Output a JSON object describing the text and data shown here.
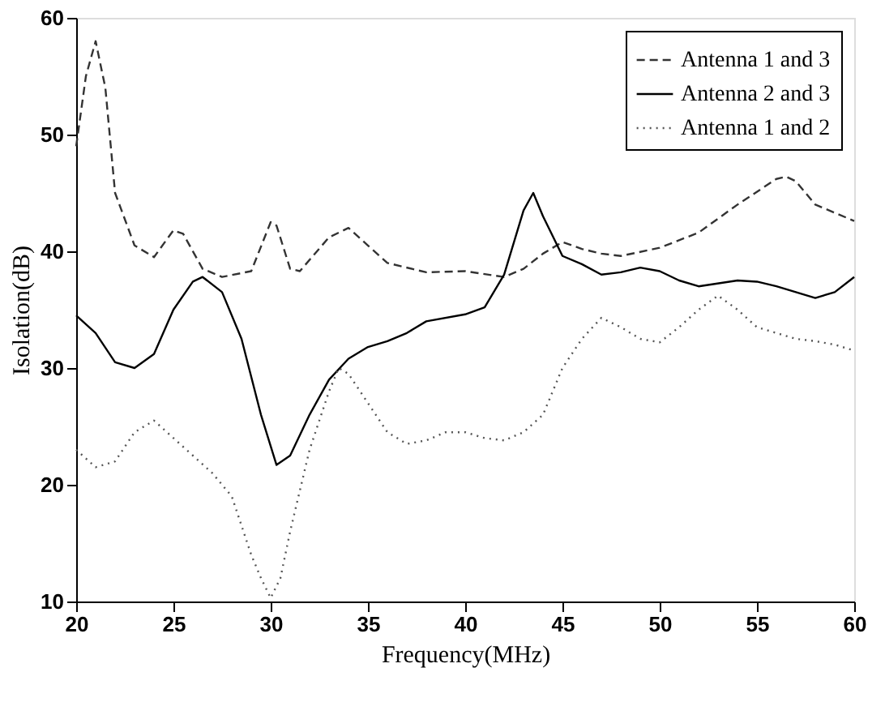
{
  "chart_data": {
    "type": "line",
    "xlabel": "Frequency(MHz)",
    "ylabel": "Isolation(dB)",
    "xlim": [
      20,
      60
    ],
    "xticks": [
      20,
      25,
      30,
      35,
      40,
      45,
      50,
      55,
      60
    ],
    "ylim": [
      10,
      60
    ],
    "yticks": [
      10,
      20,
      30,
      40,
      50,
      60
    ],
    "grid": false,
    "legend": "top right",
    "marker": "none",
    "series": [
      {
        "name": "Antenna 1 and 3",
        "color": "#333333",
        "line_style": "dashed",
        "x": [
          20,
          20.5,
          21,
          21.5,
          22,
          23,
          24,
          25,
          25.5,
          26.5,
          27.5,
          29,
          30,
          30.3,
          31,
          31.5,
          33,
          34,
          35,
          36,
          38,
          40,
          42,
          43,
          44,
          45,
          46,
          47,
          48,
          50,
          52,
          54,
          56,
          56.5,
          57,
          58,
          60
        ],
        "values": [
          49,
          55,
          58,
          54,
          45,
          40.5,
          39.5,
          41.8,
          41.5,
          38.5,
          37.8,
          38.3,
          42.5,
          42.2,
          38.5,
          38.3,
          41.2,
          42,
          40.5,
          39,
          38.2,
          38.3,
          37.8,
          38.5,
          39.8,
          40.8,
          40.2,
          39.8,
          39.6,
          40.3,
          41.6,
          44,
          46.2,
          46.4,
          46,
          44,
          42.6
        ]
      },
      {
        "name": "Antenna 2 and 3",
        "color": "#000000",
        "line_style": "solid",
        "x": [
          20,
          21,
          22,
          23,
          24,
          25,
          26,
          26.5,
          27.5,
          28.5,
          29.5,
          30.3,
          31,
          32,
          33,
          34,
          35,
          36,
          37,
          38,
          40,
          41,
          42,
          43,
          43.5,
          44,
          45,
          46,
          47,
          48,
          49,
          50,
          51,
          52,
          54,
          55,
          56,
          57,
          58,
          59,
          60
        ],
        "values": [
          34.5,
          33,
          30.5,
          30,
          31.2,
          35,
          37.4,
          37.8,
          36.5,
          32.5,
          26,
          21.7,
          22.5,
          26,
          29,
          30.8,
          31.8,
          32.3,
          33,
          34,
          34.6,
          35.2,
          38,
          43.5,
          45,
          43,
          39.6,
          38.9,
          38,
          38.2,
          38.6,
          38.3,
          37.5,
          37,
          37.5,
          37.4,
          37,
          36.5,
          36,
          36.5,
          37.8
        ]
      },
      {
        "name": "Antenna 1 and 2",
        "color": "#555555",
        "line_style": "dotted",
        "x": [
          20,
          21,
          22,
          23,
          24,
          25,
          26,
          27,
          28,
          29,
          29.5,
          30,
          30.5,
          31,
          32,
          33,
          33.5,
          34,
          35,
          36,
          37,
          38,
          39,
          40,
          41,
          42,
          43,
          44,
          45,
          46,
          47,
          48,
          49,
          50,
          51,
          52,
          53,
          54,
          55,
          56,
          57,
          58,
          59,
          60
        ],
        "values": [
          23,
          21.5,
          22,
          24.5,
          25.5,
          24,
          22.5,
          21,
          19,
          14,
          12,
          10.3,
          12,
          16,
          23,
          28,
          30,
          29.5,
          27,
          24.5,
          23.5,
          23.8,
          24.5,
          24.5,
          24,
          23.8,
          24.5,
          26,
          30,
          32.5,
          34.3,
          33.5,
          32.5,
          32.2,
          33.5,
          35,
          36.2,
          35,
          33.5,
          33,
          32.5,
          32.3,
          32,
          31.5
        ]
      }
    ]
  }
}
